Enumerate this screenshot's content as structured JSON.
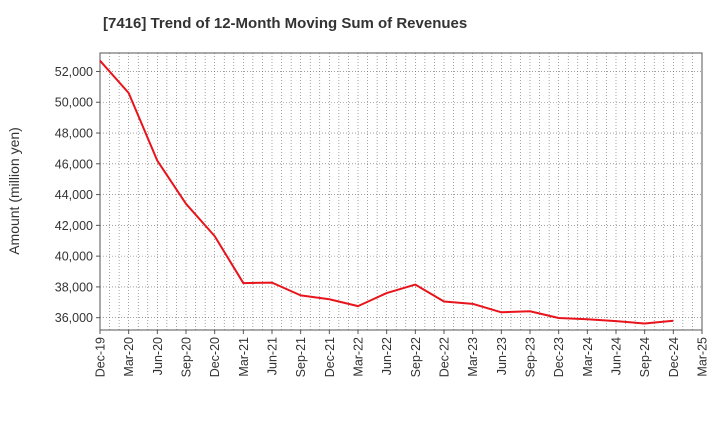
{
  "chart_data": {
    "type": "line",
    "title": "[7416]  Trend of 12-Month Moving Sum of Revenues",
    "ylabel": "Amount (million yen)",
    "xlabel": "",
    "ylim": [
      35200,
      53200
    ],
    "y_ticks": [
      36000,
      38000,
      40000,
      42000,
      44000,
      46000,
      48000,
      50000,
      52000
    ],
    "y_tick_labels": [
      "36,000",
      "38,000",
      "40,000",
      "42,000",
      "44,000",
      "46,000",
      "48,000",
      "50,000",
      "52,000"
    ],
    "x_tick_labels": [
      "Dec-19",
      "Mar-20",
      "Jun-20",
      "Sep-20",
      "Dec-20",
      "Mar-21",
      "Jun-21",
      "Sep-21",
      "Dec-21",
      "Mar-22",
      "Jun-22",
      "Sep-22",
      "Dec-22",
      "Mar-23",
      "Jun-23",
      "Sep-23",
      "Dec-23",
      "Mar-24",
      "Jun-24",
      "Sep-24",
      "Dec-24",
      "Mar-25"
    ],
    "grid": true,
    "series": [
      {
        "color": "#e8141b",
        "x": [
          "Dec-19",
          "Mar-20",
          "Jun-20",
          "Sep-20",
          "Dec-20",
          "Mar-21",
          "Jun-21",
          "Sep-21",
          "Dec-21",
          "Mar-22",
          "Jun-22",
          "Sep-22",
          "Dec-22",
          "Mar-23",
          "Jun-23",
          "Sep-23",
          "Dec-23",
          "Mar-24",
          "Jun-24",
          "Sep-24",
          "Dec-24"
        ],
        "values": [
          52700,
          50600,
          46200,
          43400,
          41300,
          38250,
          38280,
          37450,
          37200,
          36750,
          37600,
          38150,
          37050,
          36900,
          36350,
          36420,
          35980,
          35900,
          35780,
          35620,
          35800
        ]
      }
    ]
  }
}
